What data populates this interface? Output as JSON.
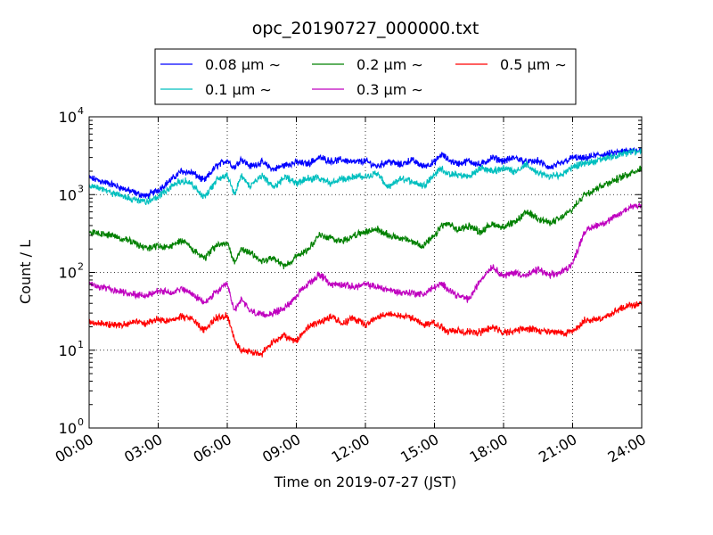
{
  "chart_data": {
    "type": "line",
    "title": "opc_20190727_000000.txt",
    "xlabel": "Time on 2019-07-27 (JST)",
    "ylabel": "Count / L",
    "x_unit": "hour",
    "xlim": [
      0,
      24
    ],
    "ylim": [
      1,
      10000
    ],
    "yscale": "log",
    "grid": true,
    "legend_position": "top-outside",
    "x_ticks": [
      {
        "v": 0,
        "label": "00:00"
      },
      {
        "v": 3,
        "label": "03:00"
      },
      {
        "v": 6,
        "label": "06:00"
      },
      {
        "v": 9,
        "label": "09:00"
      },
      {
        "v": 12,
        "label": "12:00"
      },
      {
        "v": 15,
        "label": "15:00"
      },
      {
        "v": 18,
        "label": "18:00"
      },
      {
        "v": 21,
        "label": "21:00"
      },
      {
        "v": 24,
        "label": "24:00"
      }
    ],
    "y_ticks": [
      {
        "v": 1,
        "base": "10",
        "exp": "0"
      },
      {
        "v": 10,
        "base": "10",
        "exp": "1"
      },
      {
        "v": 100,
        "base": "10",
        "exp": "2"
      },
      {
        "v": 1000,
        "base": "10",
        "exp": "3"
      },
      {
        "v": 10000,
        "base": "10",
        "exp": "4"
      }
    ],
    "series": [
      {
        "name": "0.08 μm ∼",
        "color": "#0000ff",
        "points": [
          [
            0,
            1650
          ],
          [
            1,
            1350
          ],
          [
            2,
            1050
          ],
          [
            2.5,
            950
          ],
          [
            3,
            1150
          ],
          [
            3.5,
            1500
          ],
          [
            4,
            2000
          ],
          [
            4.5,
            1900
          ],
          [
            5,
            1500
          ],
          [
            5.5,
            2300
          ],
          [
            6,
            2800
          ],
          [
            6.3,
            2200
          ],
          [
            6.6,
            2900
          ],
          [
            7,
            2300
          ],
          [
            7.5,
            2600
          ],
          [
            8,
            2100
          ],
          [
            8.5,
            2400
          ],
          [
            9,
            2600
          ],
          [
            9.5,
            2500
          ],
          [
            10,
            3000
          ],
          [
            10.5,
            2700
          ],
          [
            11,
            2800
          ],
          [
            11.5,
            2600
          ],
          [
            12,
            2700
          ],
          [
            12.5,
            2300
          ],
          [
            13,
            2700
          ],
          [
            13.5,
            2400
          ],
          [
            14,
            2800
          ],
          [
            14.5,
            2300
          ],
          [
            15,
            2600
          ],
          [
            15.3,
            3300
          ],
          [
            15.6,
            2800
          ],
          [
            16,
            2500
          ],
          [
            16.5,
            2700
          ],
          [
            17,
            2400
          ],
          [
            17.5,
            3000
          ],
          [
            18,
            2700
          ],
          [
            18.5,
            3000
          ],
          [
            19,
            2600
          ],
          [
            19.5,
            2700
          ],
          [
            20,
            2200
          ],
          [
            20.5,
            2500
          ],
          [
            21,
            3000
          ],
          [
            21.5,
            2900
          ],
          [
            22,
            3200
          ],
          [
            22.5,
            3300
          ],
          [
            23,
            3500
          ],
          [
            23.5,
            3700
          ],
          [
            24,
            3800
          ]
        ]
      },
      {
        "name": "0.1 μm ∼",
        "color": "#00bfbf",
        "points": [
          [
            0,
            1300
          ],
          [
            1,
            1050
          ],
          [
            2,
            850
          ],
          [
            2.5,
            800
          ],
          [
            3,
            950
          ],
          [
            3.5,
            1200
          ],
          [
            4,
            1550
          ],
          [
            4.5,
            1350
          ],
          [
            5,
            900
          ],
          [
            5.5,
            1500
          ],
          [
            6,
            1800
          ],
          [
            6.3,
            1000
          ],
          [
            6.6,
            1700
          ],
          [
            7,
            1300
          ],
          [
            7.5,
            1800
          ],
          [
            8,
            1200
          ],
          [
            8.5,
            1700
          ],
          [
            9,
            1400
          ],
          [
            9.5,
            1600
          ],
          [
            10,
            1600
          ],
          [
            10.5,
            1400
          ],
          [
            11,
            1600
          ],
          [
            11.5,
            1700
          ],
          [
            12,
            1700
          ],
          [
            12.5,
            1900
          ],
          [
            13,
            1200
          ],
          [
            13.5,
            1600
          ],
          [
            14,
            1500
          ],
          [
            14.5,
            1300
          ],
          [
            15,
            1800
          ],
          [
            15.3,
            2200
          ],
          [
            15.6,
            1800
          ],
          [
            16,
            1800
          ],
          [
            16.5,
            1700
          ],
          [
            17,
            2200
          ],
          [
            17.5,
            2000
          ],
          [
            18,
            2200
          ],
          [
            18.5,
            2000
          ],
          [
            19,
            2400
          ],
          [
            19.5,
            1900
          ],
          [
            20,
            1700
          ],
          [
            20.5,
            1800
          ],
          [
            21,
            2300
          ],
          [
            21.5,
            2500
          ],
          [
            22,
            2700
          ],
          [
            22.5,
            3000
          ],
          [
            23,
            3200
          ],
          [
            23.5,
            3500
          ],
          [
            24,
            3700
          ]
        ]
      },
      {
        "name": "0.2 μm ∼",
        "color": "#008000",
        "points": [
          [
            0,
            330
          ],
          [
            1,
            300
          ],
          [
            2,
            240
          ],
          [
            2.5,
            200
          ],
          [
            3,
            220
          ],
          [
            3.5,
            210
          ],
          [
            4,
            260
          ],
          [
            4.5,
            200
          ],
          [
            5,
            150
          ],
          [
            5.5,
            220
          ],
          [
            6,
            240
          ],
          [
            6.3,
            130
          ],
          [
            6.6,
            200
          ],
          [
            7,
            180
          ],
          [
            7.5,
            140
          ],
          [
            8,
            150
          ],
          [
            8.5,
            120
          ],
          [
            9,
            160
          ],
          [
            9.5,
            200
          ],
          [
            10,
            300
          ],
          [
            10.5,
            280
          ],
          [
            11,
            250
          ],
          [
            11.5,
            300
          ],
          [
            12,
            330
          ],
          [
            12.5,
            360
          ],
          [
            13,
            300
          ],
          [
            13.5,
            280
          ],
          [
            14,
            250
          ],
          [
            14.5,
            220
          ],
          [
            15,
            290
          ],
          [
            15.3,
            400
          ],
          [
            15.6,
            420
          ],
          [
            16,
            350
          ],
          [
            16.5,
            400
          ],
          [
            17,
            330
          ],
          [
            17.5,
            420
          ],
          [
            18,
            380
          ],
          [
            18.5,
            440
          ],
          [
            19,
            600
          ],
          [
            19.5,
            500
          ],
          [
            20,
            430
          ],
          [
            20.5,
            500
          ],
          [
            21,
            650
          ],
          [
            21.5,
            1000
          ],
          [
            22,
            1200
          ],
          [
            22.5,
            1400
          ],
          [
            23,
            1600
          ],
          [
            23.5,
            1900
          ],
          [
            24,
            2200
          ]
        ]
      },
      {
        "name": "0.3 μm ∼",
        "color": "#bf00bf",
        "points": [
          [
            0,
            70
          ],
          [
            1,
            60
          ],
          [
            2,
            52
          ],
          [
            2.5,
            50
          ],
          [
            3,
            58
          ],
          [
            3.5,
            55
          ],
          [
            4,
            62
          ],
          [
            4.5,
            52
          ],
          [
            5,
            40
          ],
          [
            5.5,
            55
          ],
          [
            6,
            70
          ],
          [
            6.3,
            32
          ],
          [
            6.6,
            45
          ],
          [
            7,
            32
          ],
          [
            7.5,
            28
          ],
          [
            8,
            30
          ],
          [
            8.5,
            35
          ],
          [
            9,
            50
          ],
          [
            9.5,
            70
          ],
          [
            10,
            95
          ],
          [
            10.5,
            70
          ],
          [
            11,
            70
          ],
          [
            11.5,
            65
          ],
          [
            12,
            70
          ],
          [
            12.5,
            65
          ],
          [
            13,
            60
          ],
          [
            13.5,
            55
          ],
          [
            14,
            55
          ],
          [
            14.5,
            52
          ],
          [
            15,
            65
          ],
          [
            15.3,
            70
          ],
          [
            15.6,
            62
          ],
          [
            16,
            50
          ],
          [
            16.5,
            45
          ],
          [
            17,
            80
          ],
          [
            17.5,
            120
          ],
          [
            18,
            90
          ],
          [
            18.5,
            100
          ],
          [
            19,
            90
          ],
          [
            19.5,
            110
          ],
          [
            20,
            90
          ],
          [
            20.5,
            100
          ],
          [
            21,
            130
          ],
          [
            21.5,
            330
          ],
          [
            22,
            400
          ],
          [
            22.5,
            450
          ],
          [
            23,
            550
          ],
          [
            23.5,
            700
          ],
          [
            24,
            750
          ]
        ]
      },
      {
        "name": "0.5 μm ∼",
        "color": "#ff0000",
        "points": [
          [
            0,
            23
          ],
          [
            1,
            21
          ],
          [
            2,
            23
          ],
          [
            2.5,
            22
          ],
          [
            3,
            25
          ],
          [
            3.5,
            24
          ],
          [
            4,
            27
          ],
          [
            4.5,
            25
          ],
          [
            5,
            18
          ],
          [
            5.5,
            26
          ],
          [
            6,
            28
          ],
          [
            6.3,
            14
          ],
          [
            6.6,
            10
          ],
          [
            7,
            9.5
          ],
          [
            7.5,
            9
          ],
          [
            8,
            13
          ],
          [
            8.5,
            15
          ],
          [
            9,
            13
          ],
          [
            9.5,
            20
          ],
          [
            10,
            23
          ],
          [
            10.5,
            27
          ],
          [
            11,
            22
          ],
          [
            11.5,
            26
          ],
          [
            12,
            21
          ],
          [
            12.5,
            26
          ],
          [
            13,
            29
          ],
          [
            13.5,
            28
          ],
          [
            14,
            26
          ],
          [
            14.5,
            22
          ],
          [
            15,
            22
          ],
          [
            15.3,
            20
          ],
          [
            15.6,
            17
          ],
          [
            16,
            18
          ],
          [
            16.5,
            17
          ],
          [
            17,
            17
          ],
          [
            17.5,
            20
          ],
          [
            18,
            17
          ],
          [
            18.5,
            18
          ],
          [
            19,
            19
          ],
          [
            19.5,
            18
          ],
          [
            20,
            17
          ],
          [
            20.5,
            17
          ],
          [
            21,
            17
          ],
          [
            21.5,
            24
          ],
          [
            22,
            25
          ],
          [
            22.5,
            27
          ],
          [
            23,
            33
          ],
          [
            23.5,
            38
          ],
          [
            24,
            38
          ]
        ]
      }
    ]
  }
}
